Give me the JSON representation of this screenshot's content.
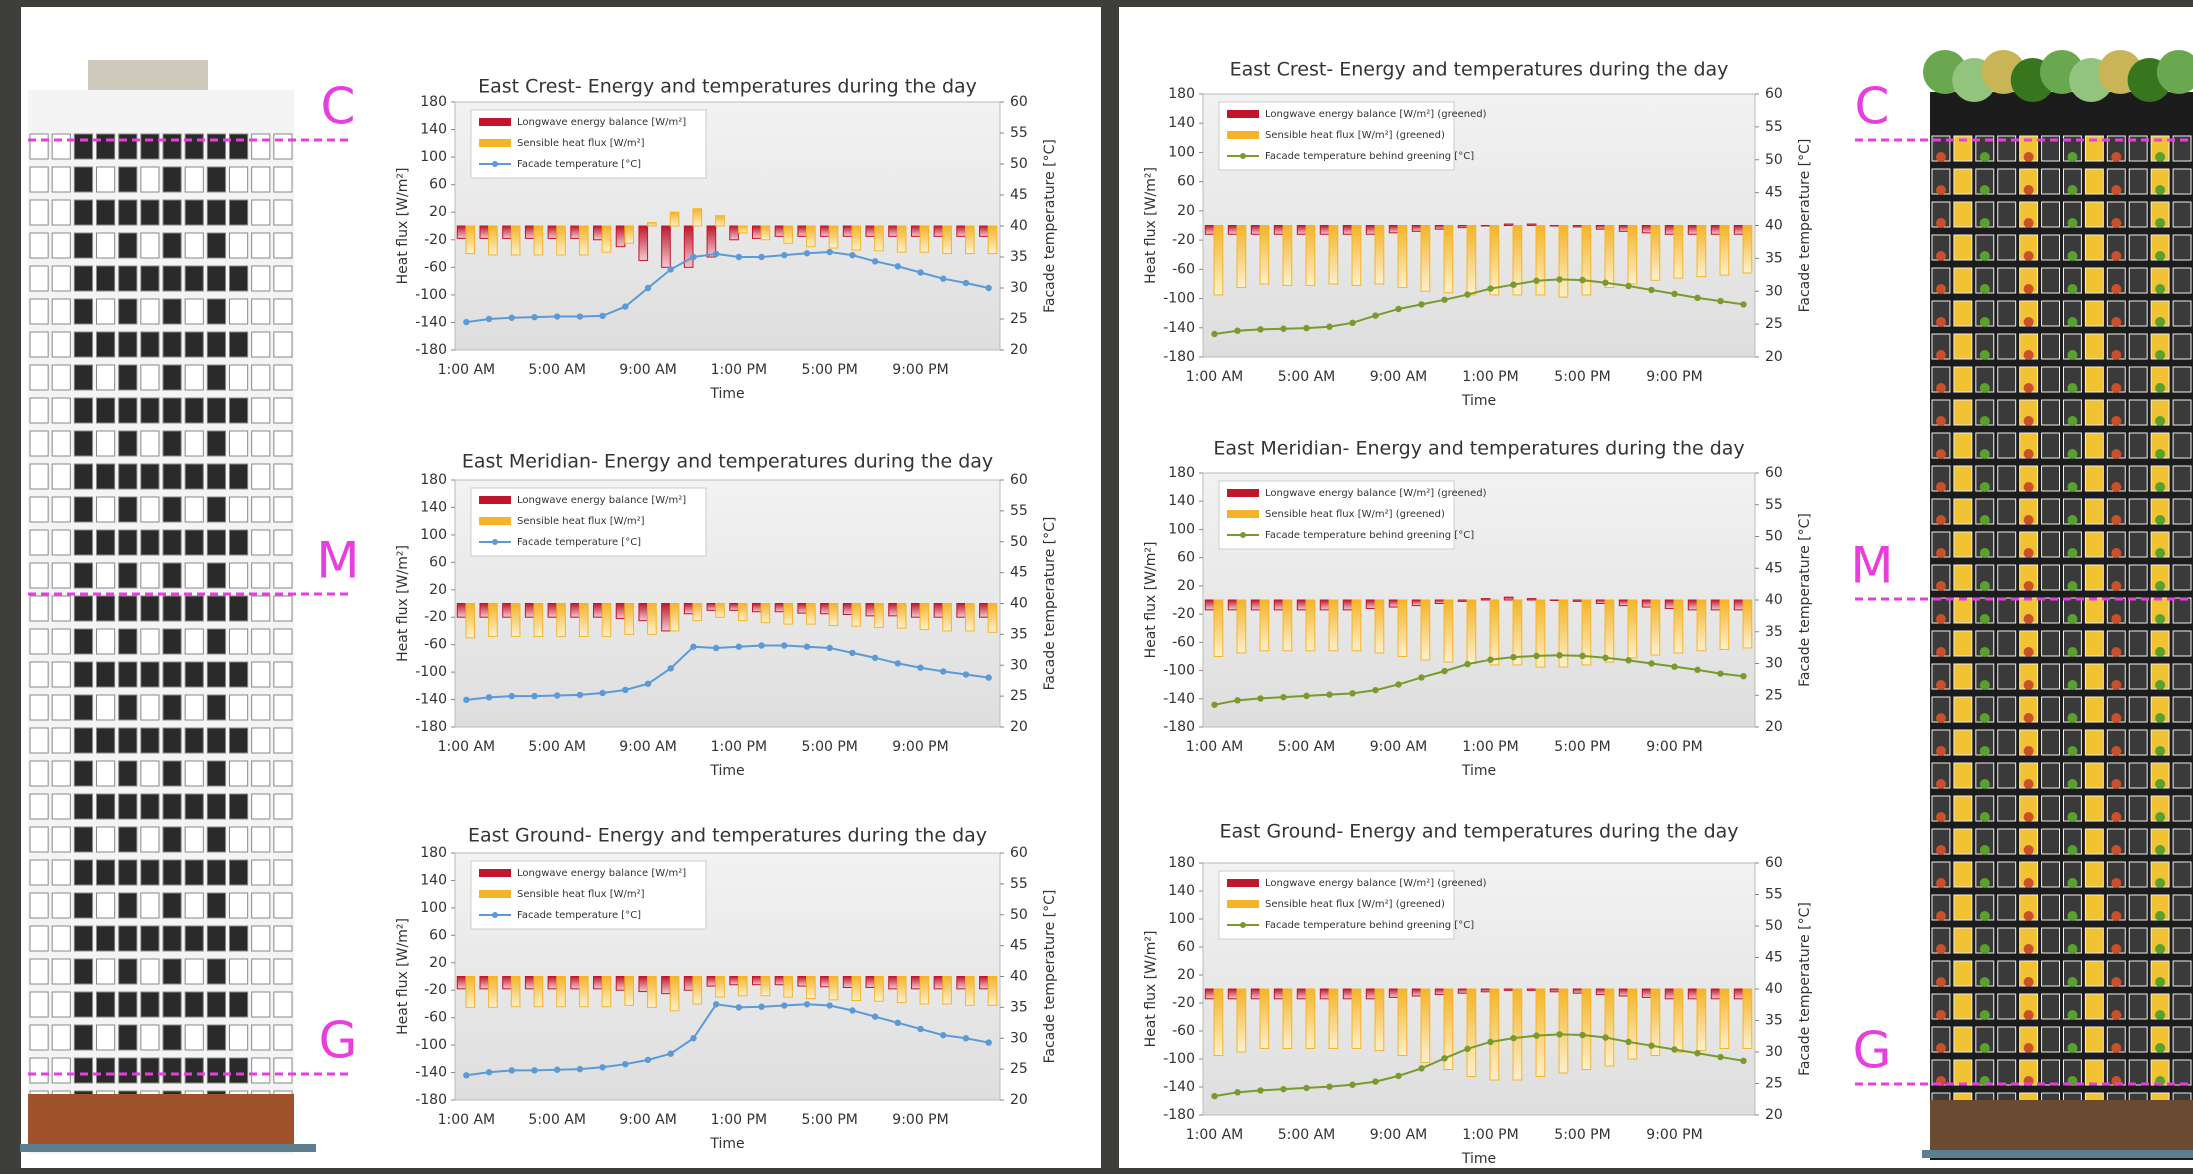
{
  "chart_data": [
    {
      "type": "bar",
      "title": "East Crest- Energy and temperatures during the day",
      "x_label": "Time",
      "y_label": "Heat flux [W/m²]",
      "y2_label": "Facade temperature [°C]",
      "categories": [
        "1:00 AM",
        null,
        null,
        null,
        "5:00 AM",
        null,
        null,
        null,
        "9:00 AM",
        null,
        null,
        null,
        "1:00 PM",
        null,
        null,
        null,
        "5:00 PM",
        null,
        null,
        null,
        "9:00 PM",
        null,
        null,
        null
      ],
      "ylim": [
        -180,
        180
      ],
      "yticks": [
        -180,
        -140,
        -100,
        -60,
        -20,
        20,
        60,
        100,
        140,
        180
      ],
      "y2lim": [
        20,
        60
      ],
      "y2ticks": [
        20,
        25,
        30,
        35,
        40,
        45,
        50,
        55,
        60
      ],
      "grid": false,
      "series": [
        {
          "name": "Longwave energy balance [W/m²]",
          "color": "#c0162c",
          "values": [
            -18,
            -18,
            -18,
            -18,
            -18,
            -18,
            -20,
            -30,
            -50,
            -60,
            -60,
            -45,
            -20,
            -18,
            -15,
            -15,
            -15,
            -15,
            -15,
            -15,
            -15,
            -15,
            -15,
            -15
          ]
        },
        {
          "name": "Sensible heat flux [W/m²]",
          "color": "#f5b427",
          "values": [
            -40,
            -42,
            -42,
            -42,
            -42,
            -42,
            -38,
            -25,
            5,
            20,
            25,
            15,
            -10,
            -20,
            -25,
            -30,
            -32,
            -35,
            -36,
            -38,
            -38,
            -40,
            -40,
            -40
          ]
        },
        {
          "name": "Facade temperature [°C]",
          "color": "#5b9bd5",
          "axis": "y2",
          "values": [
            24.5,
            25,
            25.2,
            25.3,
            25.4,
            25.4,
            25.5,
            27,
            30,
            33,
            35,
            35.5,
            35,
            35,
            35.3,
            35.6,
            35.8,
            35.3,
            34.3,
            33.5,
            32.5,
            31.5,
            30.8,
            30
          ]
        }
      ]
    },
    {
      "type": "bar",
      "title": "East Meridian- Energy and temperatures during the day",
      "x_label": "Time",
      "y_label": "Heat flux [W/m²]",
      "y2_label": "Facade temperature [°C]",
      "categories": [
        "1:00 AM",
        null,
        null,
        null,
        "5:00 AM",
        null,
        null,
        null,
        "9:00 AM",
        null,
        null,
        null,
        "1:00 PM",
        null,
        null,
        null,
        "5:00 PM",
        null,
        null,
        null,
        "9:00 PM",
        null,
        null,
        null
      ],
      "ylim": [
        -180,
        180
      ],
      "yticks": [
        -180,
        -140,
        -100,
        -60,
        -20,
        20,
        60,
        100,
        140,
        180
      ],
      "y2lim": [
        20,
        60
      ],
      "y2ticks": [
        20,
        25,
        30,
        35,
        40,
        45,
        50,
        55,
        60
      ],
      "grid": false,
      "series": [
        {
          "name": "Longwave energy balance [W/m²]",
          "color": "#c0162c",
          "values": [
            -20,
            -20,
            -20,
            -20,
            -20,
            -20,
            -20,
            -22,
            -25,
            -40,
            -15,
            -10,
            -10,
            -12,
            -12,
            -14,
            -15,
            -16,
            -18,
            -18,
            -20,
            -20,
            -20,
            -20
          ]
        },
        {
          "name": "Sensible heat flux [W/m²]",
          "color": "#f5b427",
          "values": [
            -50,
            -48,
            -48,
            -48,
            -48,
            -48,
            -48,
            -45,
            -45,
            -40,
            -25,
            -20,
            -25,
            -28,
            -30,
            -30,
            -32,
            -33,
            -35,
            -36,
            -38,
            -40,
            -40,
            -42
          ]
        },
        {
          "name": "Facade temperature [°C]",
          "color": "#5b9bd5",
          "axis": "y2",
          "values": [
            24.4,
            24.8,
            25,
            25,
            25.1,
            25.2,
            25.5,
            26,
            27,
            29.5,
            33,
            32.8,
            33,
            33.2,
            33.2,
            33,
            32.8,
            32,
            31.2,
            30.3,
            29.6,
            29,
            28.5,
            28
          ]
        }
      ]
    },
    {
      "type": "bar",
      "title": "East Ground- Energy and temperatures during the day",
      "x_label": "Time",
      "y_label": "Heat flux [W/m²]",
      "y2_label": "Facade temperature [°C]",
      "categories": [
        "1:00 AM",
        null,
        null,
        null,
        "5:00 AM",
        null,
        null,
        null,
        "9:00 AM",
        null,
        null,
        null,
        "1:00 PM",
        null,
        null,
        null,
        "5:00 PM",
        null,
        null,
        null,
        "9:00 PM",
        null,
        null,
        null
      ],
      "ylim": [
        -180,
        180
      ],
      "yticks": [
        -180,
        -140,
        -100,
        -60,
        -20,
        20,
        60,
        100,
        140,
        180
      ],
      "y2lim": [
        20,
        60
      ],
      "y2ticks": [
        20,
        25,
        30,
        35,
        40,
        45,
        50,
        55,
        60
      ],
      "grid": false,
      "series": [
        {
          "name": "Longwave energy balance [W/m²]",
          "color": "#c0162c",
          "values": [
            -18,
            -18,
            -18,
            -18,
            -18,
            -18,
            -18,
            -20,
            -22,
            -25,
            -20,
            -14,
            -12,
            -12,
            -12,
            -14,
            -15,
            -16,
            -16,
            -18,
            -18,
            -18,
            -18,
            -18
          ]
        },
        {
          "name": "Sensible heat flux [W/m²]",
          "color": "#f5b427",
          "values": [
            -45,
            -45,
            -44,
            -44,
            -44,
            -44,
            -44,
            -42,
            -45,
            -50,
            -40,
            -30,
            -28,
            -28,
            -30,
            -32,
            -34,
            -35,
            -36,
            -38,
            -40,
            -40,
            -42,
            -42
          ]
        },
        {
          "name": "Facade temperature [°C]",
          "color": "#5b9bd5",
          "axis": "y2",
          "values": [
            24,
            24.5,
            24.8,
            24.8,
            24.9,
            25,
            25.3,
            25.8,
            26.5,
            27.5,
            30,
            35.5,
            35,
            35.1,
            35.3,
            35.5,
            35.3,
            34.5,
            33.5,
            32.5,
            31.5,
            30.5,
            30,
            29.3
          ]
        }
      ]
    },
    {
      "type": "bar",
      "title": "East Crest- Energy and temperatures during the day",
      "x_label": "Time",
      "y_label": "Heat flux [W/m²]",
      "y2_label": "Facade temperature [°C]",
      "categories": [
        "1:00 AM",
        null,
        null,
        null,
        "5:00 AM",
        null,
        null,
        null,
        "9:00 AM",
        null,
        null,
        null,
        "1:00 PM",
        null,
        null,
        null,
        "5:00 PM",
        null,
        null,
        null,
        "9:00 PM",
        null,
        null,
        null
      ],
      "ylim": [
        -180,
        180
      ],
      "yticks": [
        -180,
        -140,
        -100,
        -60,
        -20,
        20,
        60,
        100,
        140,
        180
      ],
      "y2lim": [
        20,
        60
      ],
      "y2ticks": [
        20,
        25,
        30,
        35,
        40,
        45,
        50,
        55,
        60
      ],
      "grid": false,
      "series": [
        {
          "name": "Longwave energy balance [W/m²] (greened)",
          "color": "#c0162c",
          "values": [
            -12,
            -12,
            -12,
            -12,
            -12,
            -12,
            -12,
            -12,
            -10,
            -8,
            -5,
            -3,
            0,
            2,
            2,
            0,
            -2,
            -5,
            -8,
            -10,
            -12,
            -12,
            -12,
            -12
          ]
        },
        {
          "name": "Sensible heat flux [W/m²] (greened)",
          "color": "#f5b427",
          "values": [
            -95,
            -85,
            -80,
            -82,
            -82,
            -80,
            -82,
            -80,
            -85,
            -90,
            -92,
            -95,
            -95,
            -95,
            -95,
            -98,
            -95,
            -85,
            -80,
            -75,
            -72,
            -70,
            -68,
            -65
          ]
        },
        {
          "name": "Facade temperature behind greening [°C]",
          "color": "#7a9a2e",
          "axis": "y2",
          "values": [
            23.5,
            24,
            24.2,
            24.3,
            24.4,
            24.6,
            25.2,
            26.3,
            27.3,
            28,
            28.7,
            29.5,
            30.4,
            31,
            31.6,
            31.8,
            31.7,
            31.3,
            30.8,
            30.2,
            29.6,
            29,
            28.5,
            28
          ]
        }
      ]
    },
    {
      "type": "bar",
      "title": "East Meridian- Energy and temperatures during the day",
      "x_label": "Time",
      "y_label": "Heat flux [W/m²]",
      "y2_label": "Facade temperature [°C]",
      "categories": [
        "1:00 AM",
        null,
        null,
        null,
        "5:00 AM",
        null,
        null,
        null,
        "9:00 AM",
        null,
        null,
        null,
        "1:00 PM",
        null,
        null,
        null,
        "5:00 PM",
        null,
        null,
        null,
        "9:00 PM",
        null,
        null,
        null
      ],
      "ylim": [
        -180,
        180
      ],
      "yticks": [
        -180,
        -140,
        -100,
        -60,
        -20,
        20,
        60,
        100,
        140,
        180
      ],
      "y2lim": [
        20,
        60
      ],
      "y2ticks": [
        20,
        25,
        30,
        35,
        40,
        45,
        50,
        55,
        60
      ],
      "grid": false,
      "series": [
        {
          "name": "Longwave energy balance [W/m²] (greened)",
          "color": "#c0162c",
          "values": [
            -14,
            -14,
            -14,
            -14,
            -14,
            -14,
            -14,
            -12,
            -10,
            -8,
            -5,
            -2,
            2,
            4,
            2,
            0,
            -2,
            -5,
            -8,
            -10,
            -12,
            -14,
            -14,
            -14
          ]
        },
        {
          "name": "Sensible heat flux [W/m²] (greened)",
          "color": "#f5b427",
          "values": [
            -80,
            -75,
            -72,
            -72,
            -72,
            -72,
            -72,
            -75,
            -80,
            -85,
            -88,
            -90,
            -92,
            -92,
            -95,
            -95,
            -92,
            -88,
            -82,
            -78,
            -75,
            -72,
            -70,
            -68
          ]
        },
        {
          "name": "Facade temperature behind greening [°C]",
          "color": "#7a9a2e",
          "axis": "y2",
          "values": [
            23.5,
            24.2,
            24.5,
            24.7,
            24.9,
            25.1,
            25.3,
            25.8,
            26.7,
            27.8,
            28.8,
            29.9,
            30.6,
            31,
            31.2,
            31.3,
            31.2,
            30.9,
            30.5,
            30,
            29.5,
            29,
            28.4,
            28
          ]
        }
      ]
    },
    {
      "type": "bar",
      "title": "East Ground- Energy and temperatures during the day",
      "x_label": "Time",
      "y_label": "Heat flux [W/m²]",
      "y2_label": "Facade temperature [°C]",
      "categories": [
        "1:00 AM",
        null,
        null,
        null,
        "5:00 AM",
        null,
        null,
        null,
        "9:00 AM",
        null,
        null,
        null,
        "1:00 PM",
        null,
        null,
        null,
        "5:00 PM",
        null,
        null,
        null,
        "9:00 PM",
        null,
        null,
        null
      ],
      "ylim": [
        -180,
        180
      ],
      "yticks": [
        -180,
        -140,
        -100,
        -60,
        -20,
        20,
        60,
        100,
        140,
        180
      ],
      "y2lim": [
        20,
        60
      ],
      "y2ticks": [
        20,
        25,
        30,
        35,
        40,
        45,
        50,
        55,
        60
      ],
      "grid": false,
      "series": [
        {
          "name": "Longwave energy balance [W/m²] (greened)",
          "color": "#c0162c",
          "values": [
            -14,
            -14,
            -14,
            -14,
            -14,
            -14,
            -14,
            -14,
            -12,
            -10,
            -8,
            -6,
            -4,
            -2,
            -2,
            -4,
            -6,
            -8,
            -10,
            -12,
            -14,
            -14,
            -14,
            -14
          ]
        },
        {
          "name": "Sensible heat flux [W/m²] (greened)",
          "color": "#f5b427",
          "values": [
            -95,
            -90,
            -85,
            -85,
            -85,
            -85,
            -85,
            -88,
            -95,
            -105,
            -115,
            -125,
            -130,
            -130,
            -125,
            -120,
            -115,
            -110,
            -100,
            -95,
            -90,
            -88,
            -85,
            -85
          ]
        },
        {
          "name": "Facade temperature behind greening [°C]",
          "color": "#7a9a2e",
          "axis": "y2",
          "values": [
            23,
            23.6,
            23.9,
            24.1,
            24.3,
            24.5,
            24.8,
            25.3,
            26.2,
            27.4,
            29,
            30.5,
            31.6,
            32.2,
            32.6,
            32.8,
            32.7,
            32.3,
            31.6,
            31,
            30.4,
            29.8,
            29.2,
            28.6
          ]
        }
      ]
    }
  ],
  "buildings": [
    {
      "markers": [
        "C",
        "M",
        "G"
      ]
    },
    {
      "markers": [
        "C",
        "M",
        "G"
      ]
    }
  ]
}
